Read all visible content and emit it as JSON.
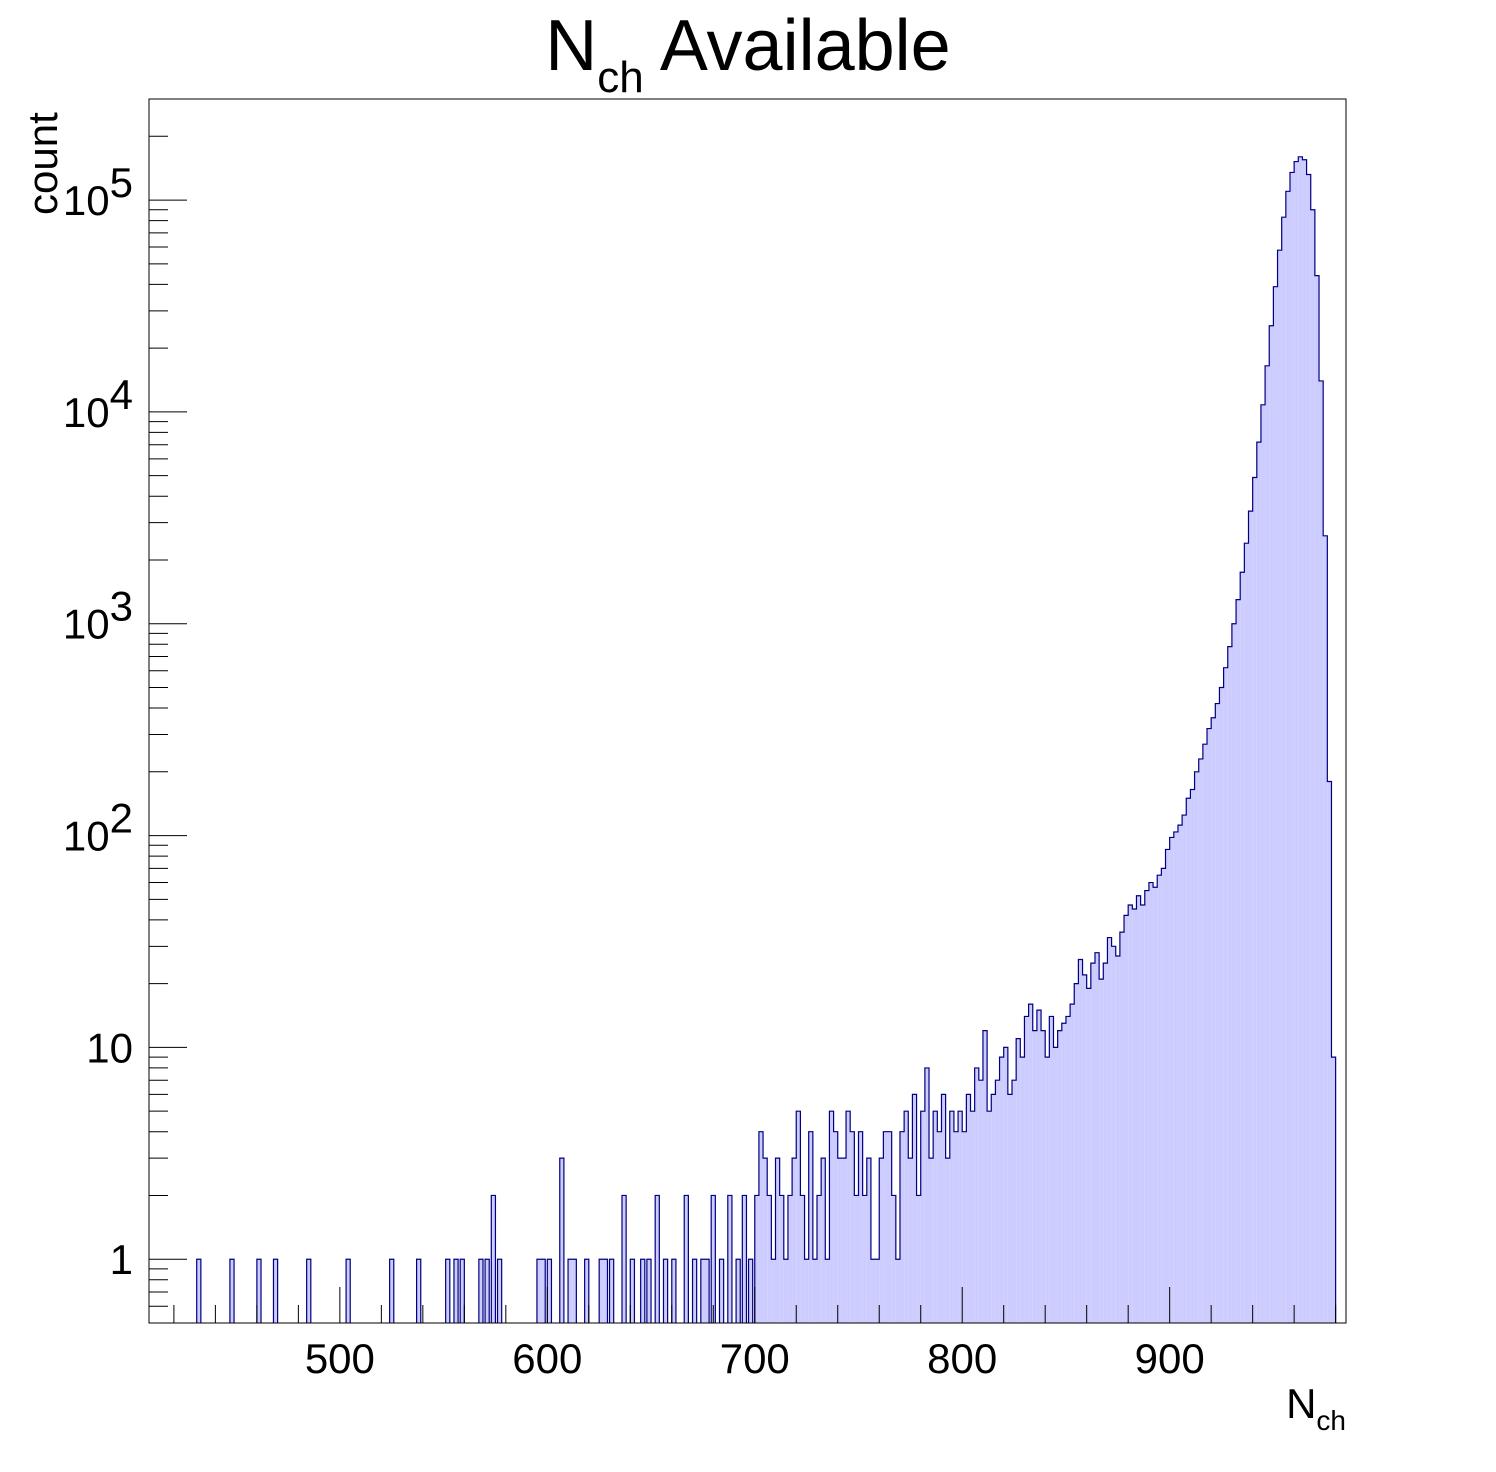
{
  "chart_data": {
    "type": "histogram",
    "title": {
      "main": "N",
      "sub": "ch",
      "rest": " Available"
    },
    "xlabel": {
      "main": "N",
      "sub": "ch"
    },
    "ylabel": "count",
    "x_range": [
      408,
      985
    ],
    "y_range": [
      0.5,
      300000
    ],
    "y_scale": "log",
    "bin_width": 2,
    "fill_color": "#ccccff",
    "line_color": "#000080",
    "x_ticks": [
      500,
      600,
      700,
      800,
      900
    ],
    "x_tick_labels": [
      "500",
      "600",
      "700",
      "800",
      "900"
    ],
    "y_tick_labels": [
      {
        "value": 1,
        "base": "1",
        "exp": ""
      },
      {
        "value": 10,
        "base": "10",
        "exp": ""
      },
      {
        "value": 100,
        "base": "10",
        "exp": "2"
      },
      {
        "value": 1000,
        "base": "10",
        "exp": "3"
      },
      {
        "value": 10000,
        "base": "10",
        "exp": "4"
      },
      {
        "value": 100000,
        "base": "10",
        "exp": "5"
      }
    ],
    "bins": [
      [
        431,
        1
      ],
      [
        447,
        1
      ],
      [
        460,
        1
      ],
      [
        468,
        1
      ],
      [
        484,
        1
      ],
      [
        503,
        1
      ],
      [
        524,
        1
      ],
      [
        537,
        1
      ],
      [
        551,
        1
      ],
      [
        555,
        1
      ],
      [
        558,
        1
      ],
      [
        567,
        1
      ],
      [
        570,
        1
      ],
      [
        573,
        2
      ],
      [
        576,
        1
      ],
      [
        595,
        1
      ],
      [
        597,
        1
      ],
      [
        600,
        1
      ],
      [
        606,
        3
      ],
      [
        610,
        1
      ],
      [
        612,
        1
      ],
      [
        618,
        1
      ],
      [
        625,
        1
      ],
      [
        627,
        1
      ],
      [
        630,
        1
      ],
      [
        636,
        2
      ],
      [
        640,
        1
      ],
      [
        645,
        1
      ],
      [
        648,
        1
      ],
      [
        652,
        2
      ],
      [
        656,
        1
      ],
      [
        660,
        1
      ],
      [
        666,
        2
      ],
      [
        670,
        1
      ],
      [
        674,
        1
      ],
      [
        676,
        1
      ],
      [
        679,
        2
      ],
      [
        683,
        1
      ],
      [
        687,
        2
      ],
      [
        691,
        1
      ],
      [
        694,
        2
      ],
      [
        697,
        1
      ],
      [
        700,
        2
      ],
      [
        702,
        4
      ],
      [
        704,
        3
      ],
      [
        706,
        2
      ],
      [
        708,
        1
      ],
      [
        710,
        3
      ],
      [
        712,
        2
      ],
      [
        714,
        1
      ],
      [
        716,
        2
      ],
      [
        718,
        3
      ],
      [
        720,
        5
      ],
      [
        722,
        2
      ],
      [
        724,
        1
      ],
      [
        726,
        4
      ],
      [
        728,
        1
      ],
      [
        730,
        2
      ],
      [
        732,
        3
      ],
      [
        734,
        1
      ],
      [
        736,
        5
      ],
      [
        738,
        4
      ],
      [
        740,
        3
      ],
      [
        742,
        3
      ],
      [
        744,
        5
      ],
      [
        746,
        4
      ],
      [
        748,
        2
      ],
      [
        750,
        4
      ],
      [
        752,
        2
      ],
      [
        754,
        3
      ],
      [
        756,
        1
      ],
      [
        758,
        1
      ],
      [
        760,
        3
      ],
      [
        762,
        4
      ],
      [
        764,
        4
      ],
      [
        766,
        2
      ],
      [
        768,
        1
      ],
      [
        770,
        4
      ],
      [
        772,
        5
      ],
      [
        774,
        3
      ],
      [
        776,
        6
      ],
      [
        778,
        2
      ],
      [
        780,
        5
      ],
      [
        782,
        8
      ],
      [
        784,
        3
      ],
      [
        786,
        5
      ],
      [
        788,
        4
      ],
      [
        790,
        6
      ],
      [
        792,
        3
      ],
      [
        794,
        5
      ],
      [
        796,
        4
      ],
      [
        798,
        5
      ],
      [
        800,
        4
      ],
      [
        802,
        6
      ],
      [
        804,
        5
      ],
      [
        806,
        8
      ],
      [
        808,
        7
      ],
      [
        810,
        12
      ],
      [
        812,
        5
      ],
      [
        814,
        6
      ],
      [
        816,
        7
      ],
      [
        818,
        9
      ],
      [
        820,
        10
      ],
      [
        822,
        6
      ],
      [
        824,
        7
      ],
      [
        826,
        11
      ],
      [
        828,
        9
      ],
      [
        830,
        14
      ],
      [
        832,
        16
      ],
      [
        834,
        12
      ],
      [
        836,
        15
      ],
      [
        838,
        12
      ],
      [
        840,
        9
      ],
      [
        842,
        14
      ],
      [
        844,
        10
      ],
      [
        846,
        12
      ],
      [
        848,
        13
      ],
      [
        850,
        14
      ],
      [
        852,
        16
      ],
      [
        854,
        20
      ],
      [
        856,
        26
      ],
      [
        858,
        22
      ],
      [
        860,
        19
      ],
      [
        862,
        25
      ],
      [
        864,
        28
      ],
      [
        866,
        21
      ],
      [
        868,
        25
      ],
      [
        870,
        33
      ],
      [
        872,
        30
      ],
      [
        874,
        27
      ],
      [
        876,
        35
      ],
      [
        878,
        42
      ],
      [
        880,
        47
      ],
      [
        882,
        45
      ],
      [
        884,
        52
      ],
      [
        886,
        47
      ],
      [
        888,
        55
      ],
      [
        890,
        60
      ],
      [
        892,
        57
      ],
      [
        894,
        65
      ],
      [
        896,
        70
      ],
      [
        898,
        86
      ],
      [
        900,
        98
      ],
      [
        902,
        104
      ],
      [
        904,
        112
      ],
      [
        906,
        125
      ],
      [
        908,
        150
      ],
      [
        910,
        165
      ],
      [
        912,
        200
      ],
      [
        914,
        230
      ],
      [
        916,
        270
      ],
      [
        918,
        320
      ],
      [
        920,
        360
      ],
      [
        922,
        420
      ],
      [
        924,
        500
      ],
      [
        926,
        620
      ],
      [
        928,
        780
      ],
      [
        930,
        1000
      ],
      [
        932,
        1300
      ],
      [
        934,
        1750
      ],
      [
        936,
        2400
      ],
      [
        938,
        3400
      ],
      [
        940,
        4900
      ],
      [
        942,
        7200
      ],
      [
        944,
        10800
      ],
      [
        946,
        16500
      ],
      [
        948,
        25500
      ],
      [
        950,
        39000
      ],
      [
        952,
        58000
      ],
      [
        954,
        83000
      ],
      [
        956,
        110000
      ],
      [
        958,
        135000
      ],
      [
        960,
        152000
      ],
      [
        962,
        160000
      ],
      [
        964,
        155000
      ],
      [
        966,
        132000
      ],
      [
        968,
        90000
      ],
      [
        970,
        44000
      ],
      [
        972,
        14000
      ],
      [
        974,
        2600
      ],
      [
        976,
        180
      ],
      [
        978,
        9
      ]
    ]
  }
}
